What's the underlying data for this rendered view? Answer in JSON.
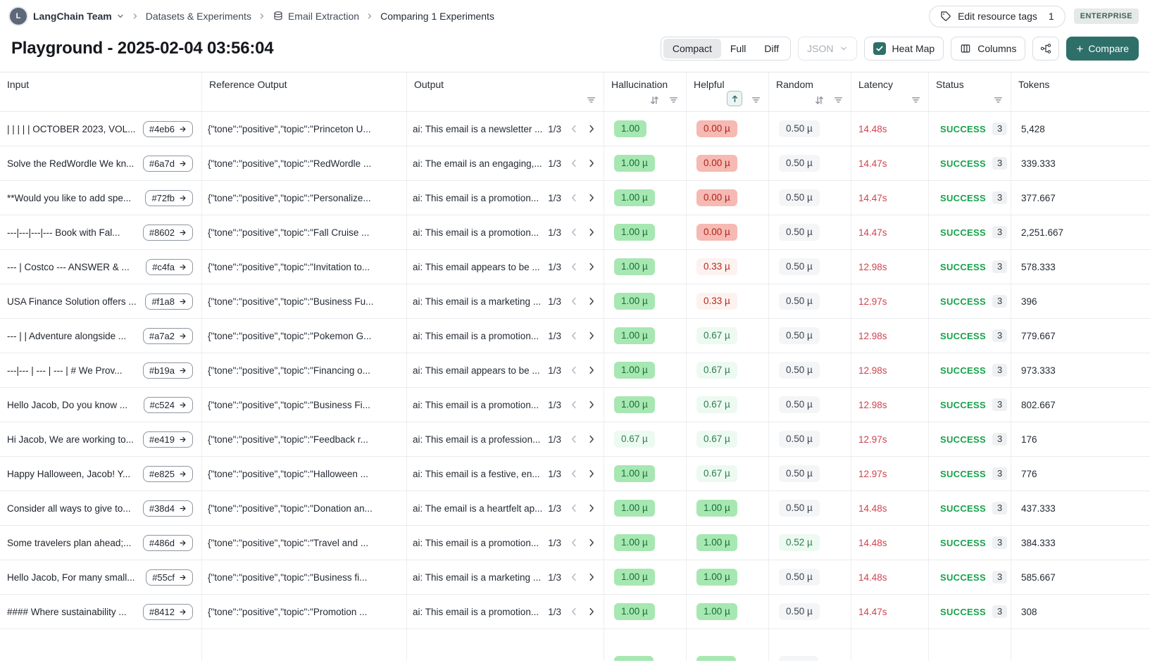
{
  "breadcrumb": {
    "team": "LangChain Team",
    "items": [
      "Datasets & Experiments",
      "Email Extraction",
      "Comparing 1 Experiments"
    ]
  },
  "header": {
    "edit_tags": "Edit resource tags",
    "edit_tags_count": "1",
    "enterprise": "ENTERPRISE",
    "title": "Playground - 2025-02-04 03:56:04"
  },
  "toolbar": {
    "view_modes": [
      "Compact",
      "Full",
      "Diff"
    ],
    "active_view": "Compact",
    "format_select": "JSON",
    "heatmap_label": "Heat Map",
    "heatmap_checked": true,
    "columns_label": "Columns",
    "compare_label": "Compare"
  },
  "colors": {
    "accent_teal": "#2e6f6a",
    "success_green": "#17a24b",
    "latency_red": "#d0424d",
    "pill_green_bg": "#a7e7b2",
    "pill_lightgreen_bg": "#edfaf1",
    "pill_red_bg": "#f6b9b3",
    "pill_lightred_bg": "#fdf2f0",
    "pill_gray_bg": "#f4f5f7"
  },
  "table": {
    "columns": [
      "Input",
      "Reference Output",
      "Output",
      "Hallucination",
      "Helpful",
      "Random",
      "Latency",
      "Status",
      "Tokens"
    ],
    "sort": {
      "column": "Helpful",
      "direction": "asc"
    },
    "rows": [
      {
        "input": "| | | | | OCTOBER 2023, VOL...",
        "id": "#4eb6",
        "ref": "{\"tone\":\"positive\",\"topic\":\"Princeton U...",
        "output": "ai: This email is a newsletter ...",
        "pager": "1/3",
        "hallucination": {
          "value": "1.00",
          "level": "green"
        },
        "helpful": {
          "value": "0.00 µ",
          "level": "red"
        },
        "random": {
          "value": "0.50 µ",
          "level": "gray"
        },
        "latency": "14.48s",
        "status": "SUCCESS",
        "status_count": "3",
        "tokens": "5,428"
      },
      {
        "input": "Solve the RedWordle We kn...",
        "id": "#6a7d",
        "ref": "{\"tone\":\"positive\",\"topic\":\"RedWordle ...",
        "output": "ai: The email is an engaging,...",
        "pager": "1/3",
        "hallucination": {
          "value": "1.00 µ",
          "level": "green"
        },
        "helpful": {
          "value": "0.00 µ",
          "level": "red"
        },
        "random": {
          "value": "0.50 µ",
          "level": "gray"
        },
        "latency": "14.47s",
        "status": "SUCCESS",
        "status_count": "3",
        "tokens": "339.333"
      },
      {
        "input": "**Would you like to add spe...",
        "id": "#72fb",
        "ref": "{\"tone\":\"positive\",\"topic\":\"Personalize...",
        "output": "ai: This email is a promotion...",
        "pager": "1/3",
        "hallucination": {
          "value": "1.00 µ",
          "level": "green"
        },
        "helpful": {
          "value": "0.00 µ",
          "level": "red"
        },
        "random": {
          "value": "0.50 µ",
          "level": "gray"
        },
        "latency": "14.47s",
        "status": "SUCCESS",
        "status_count": "3",
        "tokens": "377.667"
      },
      {
        "input": "---|---|---|--- Book with Fal...",
        "id": "#8602",
        "ref": "{\"tone\":\"positive\",\"topic\":\"Fall Cruise ...",
        "output": "ai: This email is a promotion...",
        "pager": "1/3",
        "hallucination": {
          "value": "1.00 µ",
          "level": "green"
        },
        "helpful": {
          "value": "0.00 µ",
          "level": "red"
        },
        "random": {
          "value": "0.50 µ",
          "level": "gray"
        },
        "latency": "14.47s",
        "status": "SUCCESS",
        "status_count": "3",
        "tokens": "2,251.667"
      },
      {
        "input": "--- | Costco --- ANSWER & ...",
        "id": "#c4fa",
        "ref": "{\"tone\":\"positive\",\"topic\":\"Invitation to...",
        "output": "ai: This email appears to be ...",
        "pager": "1/3",
        "hallucination": {
          "value": "1.00 µ",
          "level": "green"
        },
        "helpful": {
          "value": "0.33 µ",
          "level": "lightred"
        },
        "random": {
          "value": "0.50 µ",
          "level": "gray"
        },
        "latency": "12.98s",
        "status": "SUCCESS",
        "status_count": "3",
        "tokens": "578.333"
      },
      {
        "input": "USA Finance Solution offers ...",
        "id": "#f1a8",
        "ref": "{\"tone\":\"positive\",\"topic\":\"Business Fu...",
        "output": "ai: This email is a marketing ...",
        "pager": "1/3",
        "hallucination": {
          "value": "1.00 µ",
          "level": "green"
        },
        "helpful": {
          "value": "0.33 µ",
          "level": "lightred"
        },
        "random": {
          "value": "0.50 µ",
          "level": "gray"
        },
        "latency": "12.97s",
        "status": "SUCCESS",
        "status_count": "3",
        "tokens": "396"
      },
      {
        "input": "--- | | Adventure alongside ...",
        "id": "#a7a2",
        "ref": "{\"tone\":\"positive\",\"topic\":\"Pokemon G...",
        "output": "ai: This email is a promotion...",
        "pager": "1/3",
        "hallucination": {
          "value": "1.00 µ",
          "level": "green"
        },
        "helpful": {
          "value": "0.67 µ",
          "level": "lightgreen"
        },
        "random": {
          "value": "0.50 µ",
          "level": "gray"
        },
        "latency": "12.98s",
        "status": "SUCCESS",
        "status_count": "3",
        "tokens": "779.667"
      },
      {
        "input": "---|--- | --- | --- | # We Prov...",
        "id": "#b19a",
        "ref": "{\"tone\":\"positive\",\"topic\":\"Financing o...",
        "output": "ai: This email appears to be ...",
        "pager": "1/3",
        "hallucination": {
          "value": "1.00 µ",
          "level": "green"
        },
        "helpful": {
          "value": "0.67 µ",
          "level": "lightgreen"
        },
        "random": {
          "value": "0.50 µ",
          "level": "gray"
        },
        "latency": "12.98s",
        "status": "SUCCESS",
        "status_count": "3",
        "tokens": "973.333"
      },
      {
        "input": "Hello Jacob, Do you know ...",
        "id": "#c524",
        "ref": "{\"tone\":\"positive\",\"topic\":\"Business Fi...",
        "output": "ai: This email is a promotion...",
        "pager": "1/3",
        "hallucination": {
          "value": "1.00 µ",
          "level": "green"
        },
        "helpful": {
          "value": "0.67 µ",
          "level": "lightgreen"
        },
        "random": {
          "value": "0.50 µ",
          "level": "gray"
        },
        "latency": "12.98s",
        "status": "SUCCESS",
        "status_count": "3",
        "tokens": "802.667"
      },
      {
        "input": "Hi Jacob, We are working to...",
        "id": "#e419",
        "ref": "{\"tone\":\"positive\",\"topic\":\"Feedback r...",
        "output": "ai: This email is a profession...",
        "pager": "1/3",
        "hallucination": {
          "value": "0.67 µ",
          "level": "lightgreen"
        },
        "helpful": {
          "value": "0.67 µ",
          "level": "lightgreen"
        },
        "random": {
          "value": "0.50 µ",
          "level": "gray"
        },
        "latency": "12.97s",
        "status": "SUCCESS",
        "status_count": "3",
        "tokens": "176"
      },
      {
        "input": "Happy Halloween, Jacob! Y...",
        "id": "#e825",
        "ref": "{\"tone\":\"positive\",\"topic\":\"Halloween ...",
        "output": "ai: This email is a festive, en...",
        "pager": "1/3",
        "hallucination": {
          "value": "1.00 µ",
          "level": "green"
        },
        "helpful": {
          "value": "0.67 µ",
          "level": "lightgreen"
        },
        "random": {
          "value": "0.50 µ",
          "level": "gray"
        },
        "latency": "12.97s",
        "status": "SUCCESS",
        "status_count": "3",
        "tokens": "776"
      },
      {
        "input": "Consider all ways to give to...",
        "id": "#38d4",
        "ref": "{\"tone\":\"positive\",\"topic\":\"Donation an...",
        "output": "ai: The email is a heartfelt ap...",
        "pager": "1/3",
        "hallucination": {
          "value": "1.00 µ",
          "level": "green"
        },
        "helpful": {
          "value": "1.00 µ",
          "level": "green"
        },
        "random": {
          "value": "0.50 µ",
          "level": "gray"
        },
        "latency": "14.48s",
        "status": "SUCCESS",
        "status_count": "3",
        "tokens": "437.333"
      },
      {
        "input": "Some travelers plan ahead;...",
        "id": "#486d",
        "ref": "{\"tone\":\"positive\",\"topic\":\"Travel and ...",
        "output": "ai: This email is a promotion...",
        "pager": "1/3",
        "hallucination": {
          "value": "1.00 µ",
          "level": "green"
        },
        "helpful": {
          "value": "1.00 µ",
          "level": "green"
        },
        "random": {
          "value": "0.52 µ",
          "level": "lightgreen"
        },
        "latency": "14.48s",
        "status": "SUCCESS",
        "status_count": "3",
        "tokens": "384.333"
      },
      {
        "input": "Hello Jacob, For many small...",
        "id": "#55cf",
        "ref": "{\"tone\":\"positive\",\"topic\":\"Business fi...",
        "output": "ai: This email is a marketing ...",
        "pager": "1/3",
        "hallucination": {
          "value": "1.00 µ",
          "level": "green"
        },
        "helpful": {
          "value": "1.00 µ",
          "level": "green"
        },
        "random": {
          "value": "0.50 µ",
          "level": "gray"
        },
        "latency": "14.48s",
        "status": "SUCCESS",
        "status_count": "3",
        "tokens": "585.667"
      },
      {
        "input": "#### Where sustainability ...",
        "id": "#8412",
        "ref": "{\"tone\":\"positive\",\"topic\":\"Promotion ...",
        "output": "ai: This email is a promotion...",
        "pager": "1/3",
        "hallucination": {
          "value": "1.00 µ",
          "level": "green"
        },
        "helpful": {
          "value": "1.00 µ",
          "level": "green"
        },
        "random": {
          "value": "0.50 µ",
          "level": "gray"
        },
        "latency": "14.47s",
        "status": "SUCCESS",
        "status_count": "3",
        "tokens": "308"
      }
    ],
    "partial_row": {
      "pills": [
        {
          "column": "hallucination",
          "level": "green"
        },
        {
          "column": "helpful",
          "level": "green"
        },
        {
          "column": "random",
          "level": "gray"
        }
      ]
    }
  }
}
